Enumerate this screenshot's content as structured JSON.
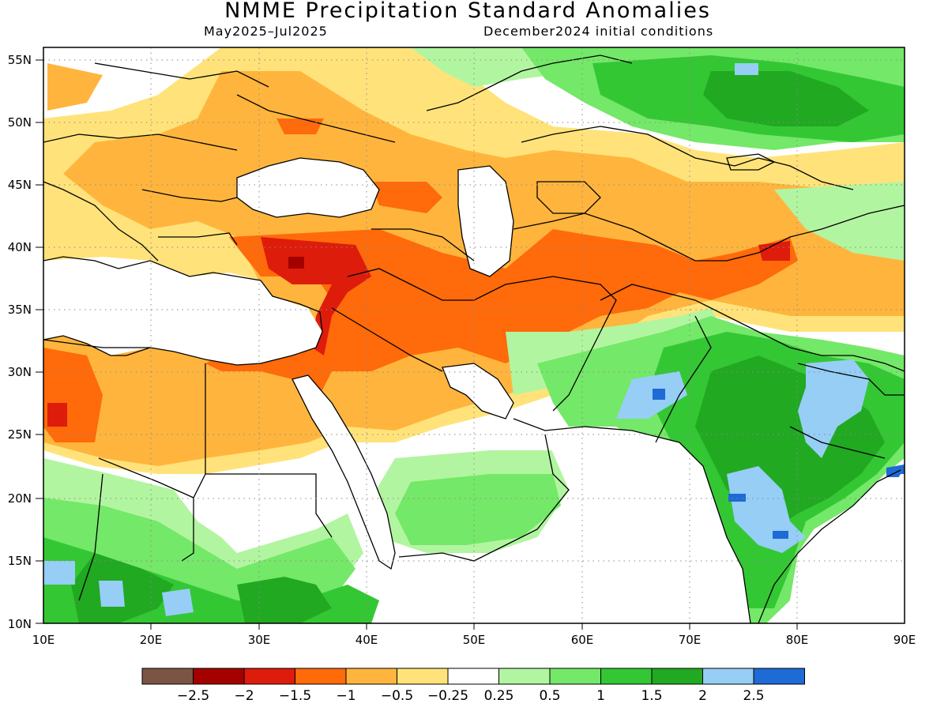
{
  "title": "NMME Precipitation Standard Anomalies",
  "subtitle_left": "May2025–Jul2025",
  "subtitle_right": "December2024 initial conditions",
  "lat_ticks": [
    "55N",
    "50N",
    "45N",
    "40N",
    "35N",
    "30N",
    "25N",
    "20N",
    "15N",
    "10N"
  ],
  "lon_ticks": [
    "10E",
    "20E",
    "30E",
    "40E",
    "50E",
    "60E",
    "70E",
    "80E",
    "90E"
  ],
  "legend": {
    "colors": [
      "#7b5444",
      "#a50000",
      "#dd1c0b",
      "#ff6a0a",
      "#ffb53d",
      "#ffe37a",
      "#ffffff",
      "#b2f5a0",
      "#74e868",
      "#34c734",
      "#21a921",
      "#96cef5",
      "#1e6bd6"
    ],
    "labels": [
      "−2.5",
      "−2",
      "−1.5",
      "−1",
      "−0.5",
      "−0.25",
      "0.25",
      "0.5",
      "1",
      "1.5",
      "2",
      "2.5"
    ]
  }
}
